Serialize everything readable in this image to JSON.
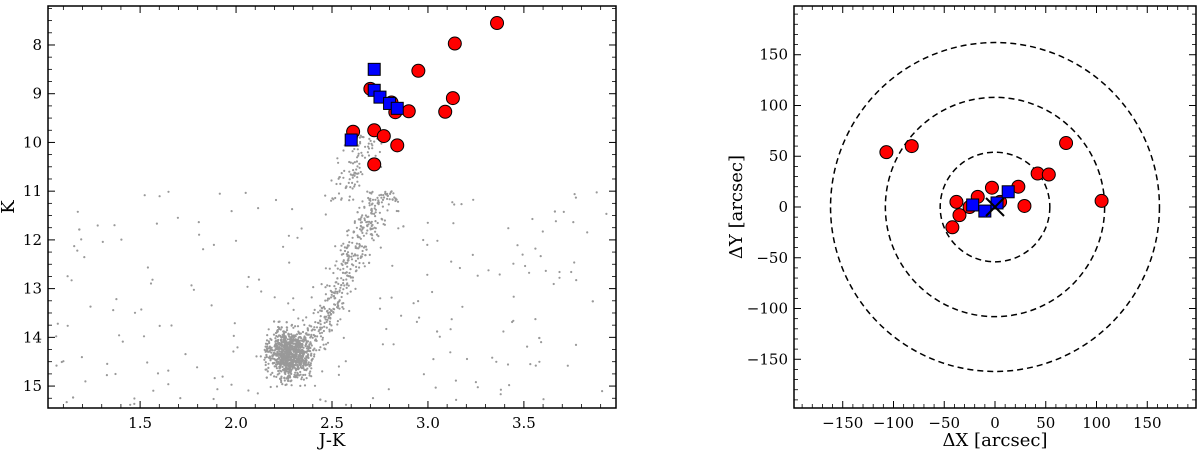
{
  "chart_data": [
    {
      "type": "scatter",
      "xlabel": "J-K",
      "ylabel": "K",
      "xlim": [
        1.02,
        3.98
      ],
      "ylim": [
        15.45,
        7.2
      ],
      "y_inverted": true,
      "xticks": [
        1.5,
        2.0,
        2.5,
        3.0,
        3.5
      ],
      "xtick_labels": [
        "1.5",
        "2.0",
        "2.5",
        "3.0",
        "3.5"
      ],
      "yticks": [
        8,
        9,
        10,
        11,
        12,
        13,
        14,
        15
      ],
      "ytick_labels": [
        "8",
        "9",
        "10",
        "11",
        "12",
        "13",
        "14",
        "15"
      ],
      "grid": false,
      "series": [
        {
          "marker": "circle",
          "color": "#ff0000",
          "points": [
            [
              3.36,
              7.55
            ],
            [
              3.14,
              7.97
            ],
            [
              2.95,
              8.53
            ],
            [
              2.7,
              8.9
            ],
            [
              2.81,
              9.18
            ],
            [
              3.13,
              9.09
            ],
            [
              2.83,
              9.38
            ],
            [
              2.9,
              9.36
            ],
            [
              3.09,
              9.37
            ],
            [
              2.61,
              9.78
            ],
            [
              2.72,
              9.75
            ],
            [
              2.77,
              9.87
            ],
            [
              2.84,
              10.06
            ],
            [
              2.72,
              10.45
            ]
          ]
        },
        {
          "marker": "square",
          "color": "#0000ff",
          "points": [
            [
              2.72,
              8.5
            ],
            [
              2.72,
              8.93
            ],
            [
              2.75,
              9.07
            ],
            [
              2.8,
              9.2
            ],
            [
              2.84,
              9.3
            ],
            [
              2.6,
              9.95
            ]
          ]
        }
      ],
      "background_population": {
        "marker": "dot",
        "color": "#999999",
        "description_count": 1700
      }
    },
    {
      "type": "scatter",
      "xlabel": "ΔX [arcsec]",
      "ylabel": "ΔY [arcsec]",
      "xlim": [
        -198,
        198
      ],
      "ylim": [
        -198,
        198
      ],
      "xticks": [
        -150,
        -100,
        -50,
        0,
        50,
        100,
        150
      ],
      "xtick_labels": [
        "−150",
        "−100",
        "−50",
        "0",
        "50",
        "100",
        "150"
      ],
      "yticks": [
        -150,
        -100,
        -50,
        0,
        50,
        100,
        150
      ],
      "ytick_labels": [
        "−150",
        "−100",
        "−50",
        "0",
        "50",
        "100",
        "150"
      ],
      "grid": false,
      "circles_radii": [
        54,
        108,
        162
      ],
      "center_marker": "x",
      "series": [
        {
          "marker": "circle",
          "color": "#ff0000",
          "points": [
            [
              -107,
              54
            ],
            [
              -82,
              60
            ],
            [
              -38,
              5
            ],
            [
              -35,
              -8
            ],
            [
              -42,
              -20
            ],
            [
              -25,
              0
            ],
            [
              -17,
              10
            ],
            [
              -3,
              19
            ],
            [
              5,
              5
            ],
            [
              23,
              20
            ],
            [
              29,
              1
            ],
            [
              42,
              33
            ],
            [
              53,
              32
            ],
            [
              70,
              63
            ],
            [
              105,
              6
            ]
          ]
        },
        {
          "marker": "square",
          "color": "#0000ff",
          "points": [
            [
              -22,
              2
            ],
            [
              -10,
              -4
            ],
            [
              2,
              4
            ],
            [
              13,
              15
            ]
          ]
        }
      ]
    }
  ]
}
